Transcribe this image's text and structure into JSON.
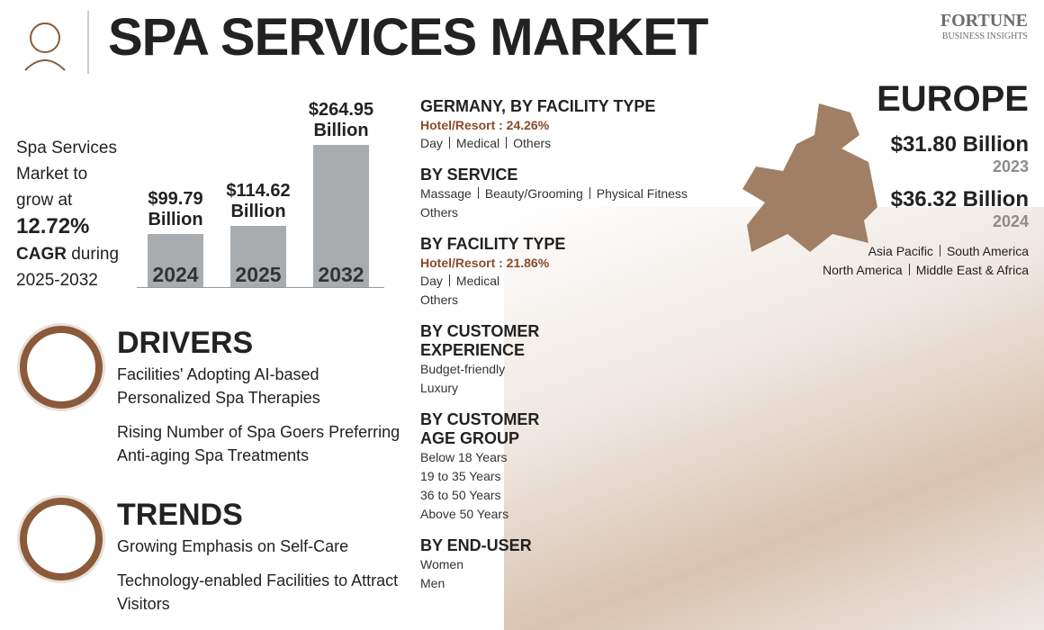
{
  "header": {
    "title": "SPA SERVICES MARKET",
    "brand": "FORTUNE",
    "brand_sub": "BUSINESS INSIGHTS"
  },
  "growth": {
    "intro": "Spa Services Market to grow at",
    "rate": "12.72%",
    "label": "CAGR",
    "suffix": "during 2025-2032"
  },
  "chart_data": {
    "type": "bar",
    "categories": [
      "2024",
      "2025",
      "2032"
    ],
    "values": [
      99.79,
      114.62,
      264.95
    ],
    "value_labels": [
      "$99.79 Billion",
      "$114.62 Billion",
      "$264.95 Billion"
    ],
    "color": "#a9acaf"
  },
  "drivers": {
    "title": "DRIVERS",
    "items": [
      "Facilities' Adopting AI-based Personalized Spa Therapies",
      "Rising Number of Spa Goers Preferring Anti-aging Spa Treatments"
    ]
  },
  "trends": {
    "title": "TRENDS",
    "items": [
      "Growing Emphasis on Self-Care",
      "Technology-enabled Facilities to Attract Visitors"
    ]
  },
  "segments": [
    {
      "title": "GERMANY, BY FACILITY TYPE",
      "highlight": "Hotel/Resort : 24.26%",
      "rows": [
        [
          "Day",
          "Medical",
          "Others"
        ]
      ]
    },
    {
      "title": "BY SERVICE",
      "rows": [
        [
          "Massage",
          "Beauty/Grooming",
          "Physical Fitness"
        ],
        [
          "Others"
        ]
      ]
    },
    {
      "title": "BY FACILITY TYPE",
      "highlight": "Hotel/Resort : 21.86%",
      "rows": [
        [
          "Day",
          "Medical"
        ],
        [
          "Others"
        ]
      ]
    },
    {
      "title": "BY CUSTOMER EXPERIENCE",
      "rows": [
        [
          "Budget-friendly"
        ],
        [
          "Luxury"
        ]
      ]
    },
    {
      "title": "BY CUSTOMER AGE GROUP",
      "rows": [
        [
          "Below 18 Years"
        ],
        [
          "19 to 35 Years"
        ],
        [
          "36 to 50 Years"
        ],
        [
          "Above 50 Years"
        ]
      ]
    },
    {
      "title": "BY END-USER",
      "rows": [
        [
          "Women"
        ],
        [
          "Men"
        ]
      ]
    }
  ],
  "region": {
    "title": "EUROPE",
    "values": [
      {
        "amount": "$31.80 Billion",
        "year": "2023"
      },
      {
        "amount": "$36.32 Billion",
        "year": "2024"
      }
    ],
    "others": [
      [
        "Asia Pacific",
        "South America"
      ],
      [
        "North America",
        "Middle East & Africa"
      ]
    ]
  }
}
